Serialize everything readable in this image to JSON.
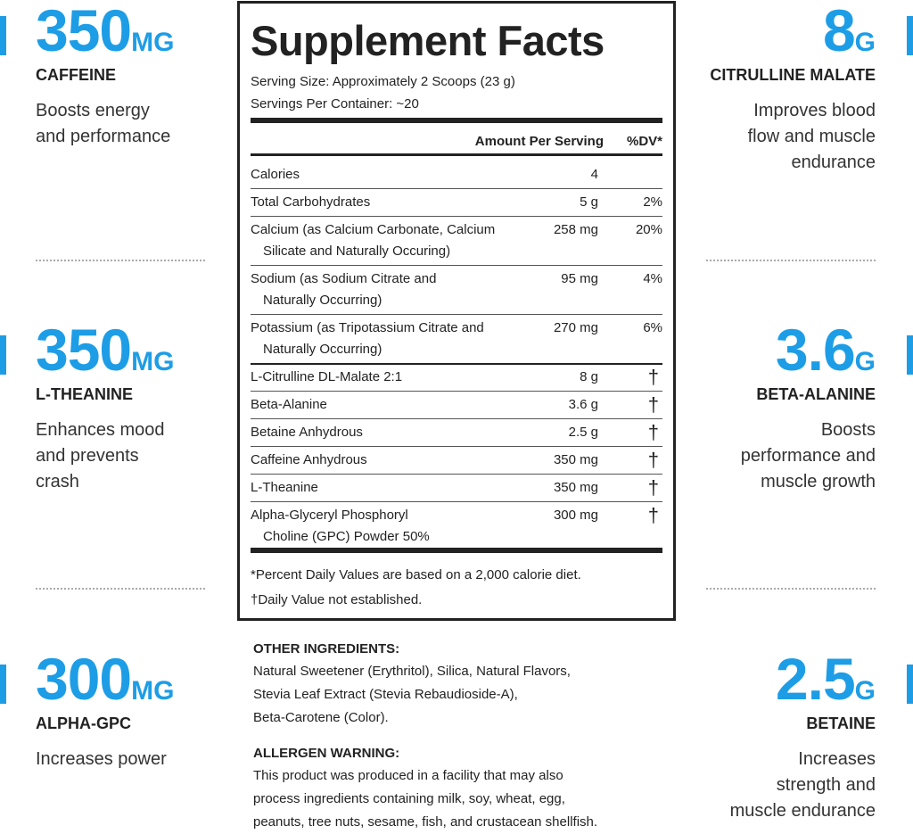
{
  "left_features": [
    {
      "amount": "350",
      "unit": "MG",
      "name": "CAFFEINE",
      "description": [
        "Boosts energy",
        "and performance"
      ]
    },
    {
      "amount": "350",
      "unit": "MG",
      "name": "L-THEANINE",
      "description": [
        "Enhances mood",
        "and prevents",
        "crash"
      ]
    },
    {
      "amount": "300",
      "unit": "MG",
      "name": "ALPHA-GPC",
      "description": [
        "Increases power"
      ]
    }
  ],
  "right_features": [
    {
      "amount": "8",
      "unit": "G",
      "name": "CITRULLINE MALATE",
      "description": [
        "Improves blood",
        "flow and muscle",
        "endurance"
      ]
    },
    {
      "amount": "3.6",
      "unit": "G",
      "name": "BETA-ALANINE",
      "description": [
        "Boosts",
        "performance and",
        "muscle growth"
      ]
    },
    {
      "amount": "2.5",
      "unit": "G",
      "name": "BETAINE",
      "description": [
        "Increases",
        "strength and",
        "muscle endurance"
      ]
    }
  ],
  "supplement_facts": {
    "title": "Supplement Facts",
    "serving_size": "Serving Size: Approximately 2 Scoops (23 g)",
    "servings_per_container": "Servings Per Container: ~20",
    "header": {
      "amount": "Amount Per Serving",
      "dv": "%DV*"
    },
    "rows": [
      {
        "name": [
          "Calories"
        ],
        "amount": "4"
      },
      {
        "name": [
          "Total Carbohydrates"
        ],
        "amount": "5 g",
        "dv": "2%"
      },
      {
        "name": [
          "Calcium (as Calcium Carbonate, Calcium",
          "Silicate and Naturally Occuring)"
        ],
        "amount": "258 mg",
        "dv": "20%"
      },
      {
        "name": [
          "Sodium (as Sodium Citrate and",
          "Naturally Occurring)"
        ],
        "amount": "95 mg",
        "dv": "4%"
      },
      {
        "name": [
          "Potassium (as Tripotassium Citrate and",
          "Naturally Occurring)"
        ],
        "amount": "270 mg",
        "dv": "6%"
      },
      {
        "name": [
          "L-Citrulline DL-Malate 2:1"
        ],
        "amount": "8 g",
        "dv": "†"
      },
      {
        "name": [
          "Beta-Alanine"
        ],
        "amount": "3.6 g",
        "dv": "†"
      },
      {
        "name": [
          "Betaine Anhydrous"
        ],
        "amount": "2.5 g",
        "dv": "†"
      },
      {
        "name": [
          "Caffeine Anhydrous"
        ],
        "amount": "350 mg",
        "dv": "†"
      },
      {
        "name": [
          "L-Theanine"
        ],
        "amount": "350 mg",
        "dv": "†"
      },
      {
        "name": [
          "Alpha-Glyceryl Phosphoryl",
          "Choline (GPC) Powder 50%"
        ],
        "amount": "300 mg",
        "dv": "†"
      }
    ],
    "footnotes": [
      "*Percent Daily Values are based on a 2,000 calorie diet.",
      "†Daily Value not established."
    ]
  },
  "other_ingredients": {
    "heading": "OTHER INGREDIENTS:",
    "lines": [
      "Natural Sweetener (Erythritol), Silica, Natural Flavors,",
      "Stevia Leaf Extract (Stevia Rebaudioside-A),",
      "Beta-Carotene (Color)."
    ]
  },
  "allergen_warning": {
    "heading": "ALLERGEN WARNING:",
    "lines": [
      "This product was produced in a facility that may also",
      "process ingredients containing milk, soy, wheat, egg,",
      "peanuts, tree nuts, sesame, fish, and crustacean shellfish."
    ]
  }
}
